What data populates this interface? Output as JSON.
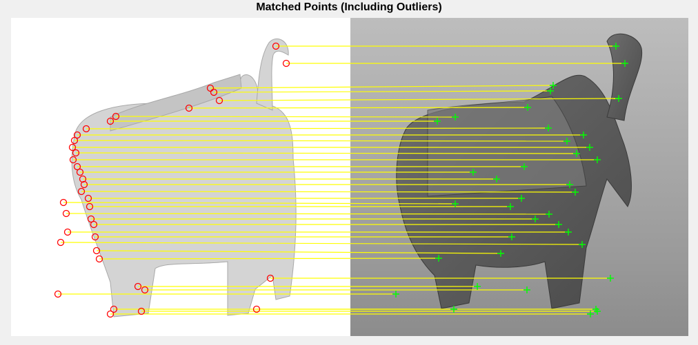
{
  "window": {
    "title": "Matched Points (Including Outliers)"
  },
  "chart_data": {
    "type": "scatter",
    "title": "Matched Points (Including Outliers)",
    "xlabel": "",
    "ylabel": "",
    "grid": false,
    "legend": "none",
    "colors": {
      "background": "#f0f0f0",
      "left_image_bg": "#ffffff",
      "right_image_bg": "#9a9a9a",
      "match_line": "#ffff00",
      "points_image1": "#ff0000",
      "points_image2": "#00ff00"
    },
    "series": [
      {
        "marker": "o",
        "color": "#ff0000"
      },
      {
        "marker": "+",
        "color": "#00ff00"
      }
    ],
    "matches": [
      {
        "p1": [
          400,
          67
        ],
        "p2": [
          893,
          67
        ]
      },
      {
        "p1": [
          415,
          92
        ],
        "p2": [
          906,
          92
        ]
      },
      {
        "p1": [
          305,
          128
        ],
        "p2": [
          802,
          124
        ]
      },
      {
        "p1": [
          310,
          134
        ],
        "p2": [
          798,
          132
        ]
      },
      {
        "p1": [
          318,
          146
        ],
        "p2": [
          897,
          143
        ]
      },
      {
        "p1": [
          274,
          157
        ],
        "p2": [
          765,
          156
        ]
      },
      {
        "p1": [
          168,
          169
        ],
        "p2": [
          660,
          170
        ]
      },
      {
        "p1": [
          160,
          176
        ],
        "p2": [
          634,
          176
        ]
      },
      {
        "p1": [
          125,
          187
        ],
        "p2": [
          795,
          186
        ]
      },
      {
        "p1": [
          112,
          196
        ],
        "p2": [
          846,
          196
        ]
      },
      {
        "p1": [
          108,
          204
        ],
        "p2": [
          822,
          205
        ]
      },
      {
        "p1": [
          105,
          214
        ],
        "p2": [
          855,
          214
        ]
      },
      {
        "p1": [
          110,
          222
        ],
        "p2": [
          836,
          223
        ]
      },
      {
        "p1": [
          106,
          232
        ],
        "p2": [
          866,
          232
        ]
      },
      {
        "p1": [
          112,
          242
        ],
        "p2": [
          760,
          242
        ]
      },
      {
        "p1": [
          116,
          250
        ],
        "p2": [
          686,
          250
        ]
      },
      {
        "p1": [
          120,
          260
        ],
        "p2": [
          720,
          260
        ]
      },
      {
        "p1": [
          122,
          268
        ],
        "p2": [
          826,
          268
        ]
      },
      {
        "p1": [
          118,
          278
        ],
        "p2": [
          834,
          279
        ]
      },
      {
        "p1": [
          128,
          288
        ],
        "p2": [
          756,
          288
        ]
      },
      {
        "p1": [
          92,
          294
        ],
        "p2": [
          660,
          296
        ]
      },
      {
        "p1": [
          130,
          300
        ],
        "p2": [
          740,
          300
        ]
      },
      {
        "p1": [
          96,
          310
        ],
        "p2": [
          796,
          311
        ]
      },
      {
        "p1": [
          132,
          318
        ],
        "p2": [
          776,
          318
        ]
      },
      {
        "p1": [
          136,
          326
        ],
        "p2": [
          810,
          326
        ]
      },
      {
        "p1": [
          98,
          337
        ],
        "p2": [
          824,
          337
        ]
      },
      {
        "p1": [
          138,
          344
        ],
        "p2": [
          742,
          344
        ]
      },
      {
        "p1": [
          88,
          352
        ],
        "p2": [
          844,
          355
        ]
      },
      {
        "p1": [
          140,
          364
        ],
        "p2": [
          726,
          368
        ]
      },
      {
        "p1": [
          144,
          376
        ],
        "p2": [
          636,
          375
        ]
      },
      {
        "p1": [
          392,
          404
        ],
        "p2": [
          885,
          404
        ]
      },
      {
        "p1": [
          200,
          416
        ],
        "p2": [
          692,
          416
        ]
      },
      {
        "p1": [
          210,
          421
        ],
        "p2": [
          764,
          421
        ]
      },
      {
        "p1": [
          84,
          427
        ],
        "p2": [
          574,
          427
        ]
      },
      {
        "p1": [
          165,
          449
        ],
        "p2": [
          658,
          449
        ]
      },
      {
        "p1": [
          205,
          452
        ],
        "p2": [
          866,
          452
        ]
      },
      {
        "p1": [
          372,
          449
        ],
        "p2": [
          864,
          449
        ]
      },
      {
        "p1": [
          160,
          456
        ],
        "p2": [
          856,
          456
        ]
      }
    ]
  }
}
